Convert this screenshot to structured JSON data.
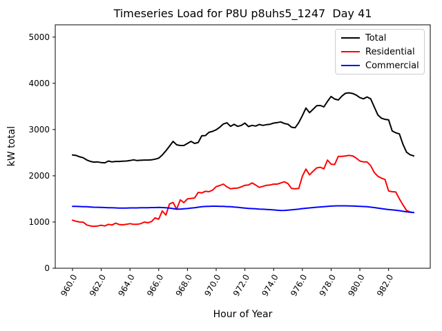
{
  "chart_data": {
    "type": "line",
    "title": "Timeseries Load for P8U p8uhs5_1247  Day 41",
    "xlabel": "Hour of Year",
    "ylabel": "kW total",
    "grid": false,
    "legend_position": "upper right",
    "xlim": [
      958.8,
      984.9
    ],
    "ylim": [
      0,
      5265
    ],
    "xticks": {
      "values": [
        960,
        962,
        964,
        966,
        968,
        970,
        972,
        974,
        976,
        978,
        980,
        982
      ],
      "labels": [
        "960.0",
        "962.0",
        "964.0",
        "966.0",
        "968.0",
        "970.0",
        "972.0",
        "974.0",
        "976.0",
        "978.0",
        "980.0",
        "982.0"
      ]
    },
    "yticks": {
      "values": [
        0,
        1000,
        2000,
        3000,
        4000,
        5000
      ],
      "labels": [
        "0",
        "1000",
        "2000",
        "3000",
        "4000",
        "5000"
      ]
    },
    "x": [
      960.0,
      960.25,
      960.5,
      960.75,
      961.0,
      961.25,
      961.5,
      961.75,
      962.0,
      962.25,
      962.5,
      962.75,
      963.0,
      963.25,
      963.5,
      963.75,
      964.0,
      964.25,
      964.5,
      964.75,
      965.0,
      965.25,
      965.5,
      965.75,
      966.0,
      966.25,
      966.5,
      966.75,
      967.0,
      967.25,
      967.5,
      967.75,
      968.0,
      968.25,
      968.5,
      968.75,
      969.0,
      969.25,
      969.5,
      969.75,
      970.0,
      970.25,
      970.5,
      970.75,
      971.0,
      971.25,
      971.5,
      971.75,
      972.0,
      972.25,
      972.5,
      972.75,
      973.0,
      973.25,
      973.5,
      973.75,
      974.0,
      974.25,
      974.5,
      974.75,
      975.0,
      975.25,
      975.5,
      975.75,
      976.0,
      976.25,
      976.5,
      976.75,
      977.0,
      977.25,
      977.5,
      977.75,
      978.0,
      978.25,
      978.5,
      978.75,
      979.0,
      979.25,
      979.5,
      979.75,
      980.0,
      980.25,
      980.5,
      980.75,
      981.0,
      981.25,
      981.5,
      981.75,
      982.0,
      982.25,
      982.5,
      982.75,
      983.0,
      983.25,
      983.5,
      983.75
    ],
    "series": [
      {
        "name": "Total",
        "color": "#000000",
        "values": [
          2450,
          2440,
          2410,
          2390,
          2340,
          2310,
          2295,
          2300,
          2285,
          2280,
          2320,
          2300,
          2310,
          2310,
          2315,
          2320,
          2330,
          2345,
          2330,
          2335,
          2340,
          2340,
          2345,
          2360,
          2380,
          2450,
          2540,
          2640,
          2745,
          2670,
          2655,
          2655,
          2700,
          2745,
          2700,
          2720,
          2865,
          2870,
          2940,
          2960,
          2995,
          3050,
          3120,
          3145,
          3070,
          3115,
          3070,
          3090,
          3140,
          3065,
          3090,
          3075,
          3110,
          3090,
          3105,
          3115,
          3140,
          3150,
          3165,
          3130,
          3115,
          3050,
          3040,
          3150,
          3300,
          3465,
          3365,
          3440,
          3515,
          3520,
          3490,
          3610,
          3715,
          3660,
          3640,
          3725,
          3785,
          3795,
          3780,
          3745,
          3690,
          3665,
          3705,
          3665,
          3490,
          3315,
          3245,
          3220,
          3210,
          2970,
          2930,
          2905,
          2680,
          2510,
          2455,
          2430
        ]
      },
      {
        "name": "Residential",
        "color": "#ff0000",
        "values": [
          1040,
          1015,
          1000,
          995,
          935,
          915,
          905,
          915,
          930,
          915,
          950,
          935,
          975,
          945,
          940,
          950,
          965,
          950,
          950,
          965,
          1000,
          985,
          1010,
          1090,
          1060,
          1240,
          1150,
          1390,
          1425,
          1275,
          1480,
          1420,
          1500,
          1510,
          1520,
          1640,
          1630,
          1665,
          1655,
          1690,
          1765,
          1790,
          1820,
          1760,
          1720,
          1730,
          1735,
          1760,
          1795,
          1800,
          1845,
          1800,
          1750,
          1770,
          1795,
          1800,
          1820,
          1820,
          1845,
          1870,
          1830,
          1725,
          1720,
          1725,
          1990,
          2145,
          2020,
          2100,
          2170,
          2185,
          2150,
          2340,
          2250,
          2245,
          2420,
          2420,
          2430,
          2440,
          2430,
          2380,
          2320,
          2300,
          2300,
          2220,
          2070,
          1990,
          1950,
          1920,
          1670,
          1655,
          1650,
          1500,
          1370,
          1250,
          1215,
          1205
        ]
      },
      {
        "name": "Commercial",
        "color": "#0000ff",
        "values": [
          1340,
          1340,
          1335,
          1330,
          1330,
          1325,
          1320,
          1318,
          1315,
          1312,
          1310,
          1308,
          1305,
          1302,
          1300,
          1302,
          1305,
          1305,
          1305,
          1308,
          1310,
          1310,
          1312,
          1312,
          1315,
          1312,
          1310,
          1300,
          1290,
          1278,
          1280,
          1285,
          1292,
          1300,
          1310,
          1320,
          1330,
          1336,
          1340,
          1342,
          1342,
          1340,
          1338,
          1334,
          1330,
          1325,
          1318,
          1310,
          1300,
          1295,
          1290,
          1285,
          1280,
          1276,
          1272,
          1268,
          1262,
          1255,
          1250,
          1252,
          1258,
          1265,
          1272,
          1278,
          1290,
          1298,
          1305,
          1312,
          1320,
          1326,
          1332,
          1338,
          1344,
          1348,
          1350,
          1350,
          1350,
          1348,
          1345,
          1342,
          1340,
          1335,
          1330,
          1322,
          1312,
          1300,
          1290,
          1280,
          1270,
          1262,
          1255,
          1245,
          1232,
          1222,
          1212,
          1205
        ]
      }
    ]
  }
}
